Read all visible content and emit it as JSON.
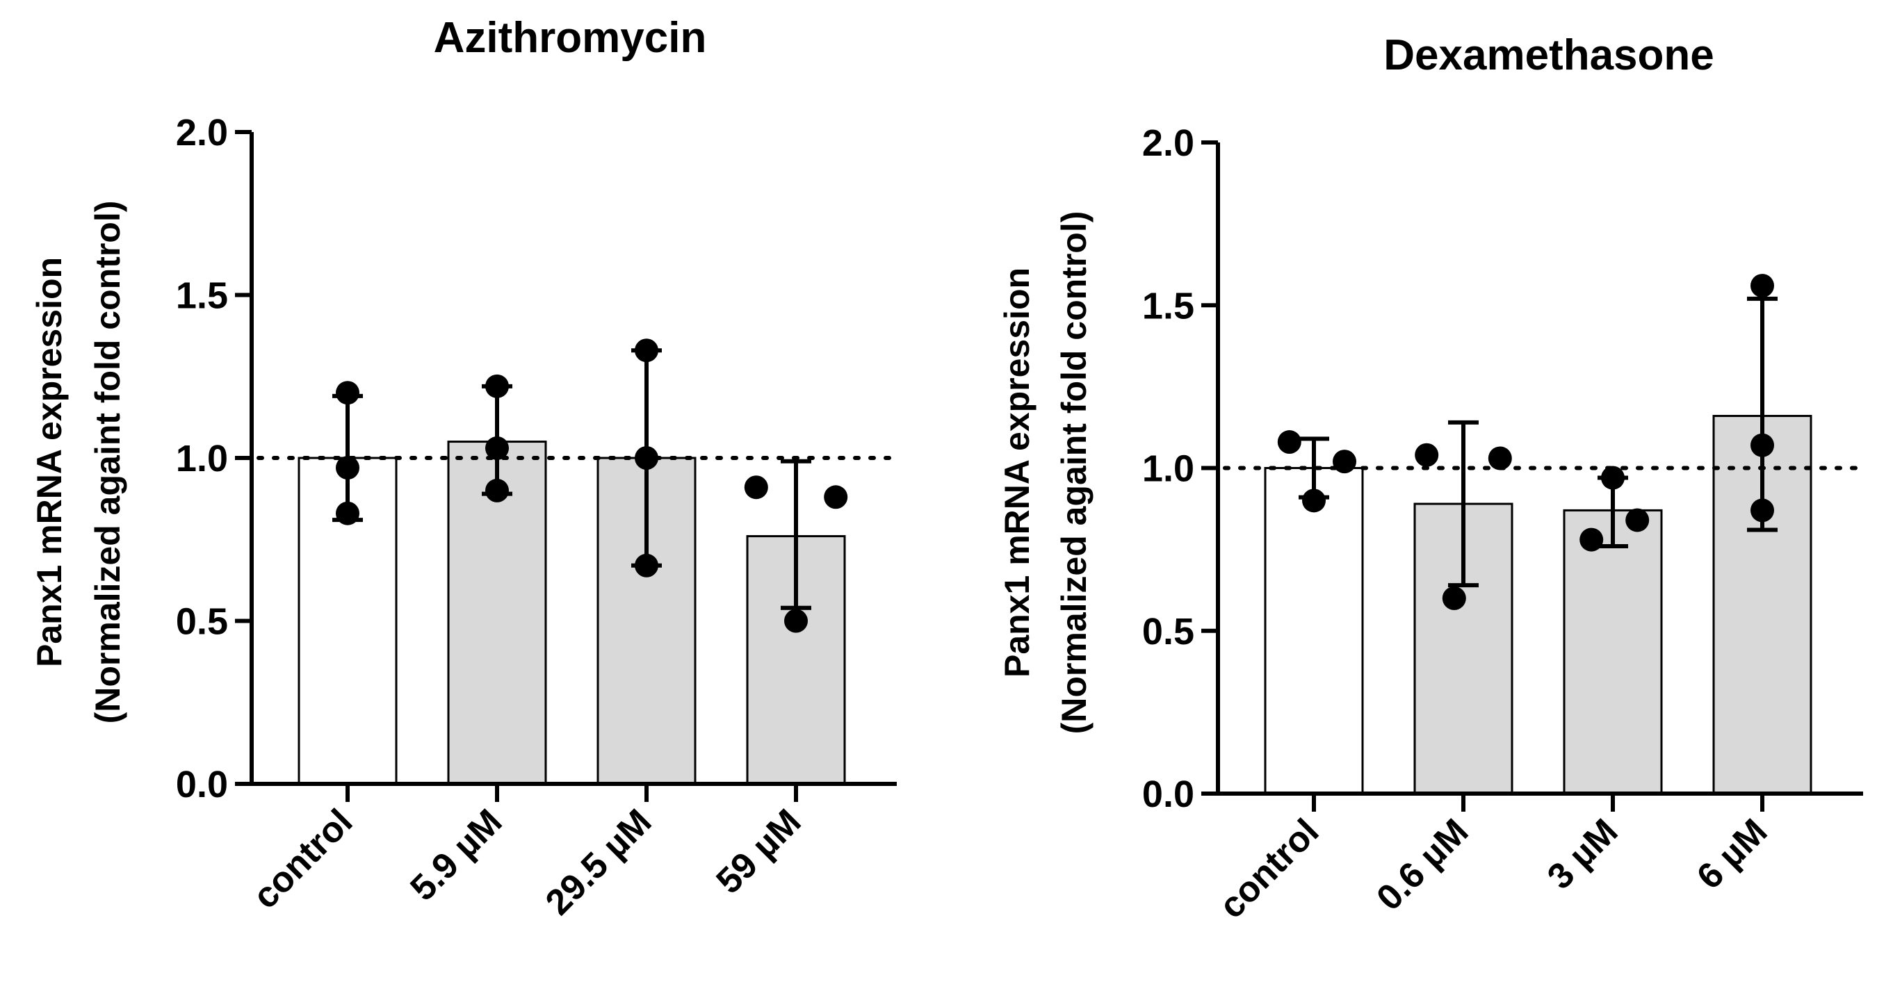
{
  "chart_data": [
    {
      "type": "bar",
      "title": "Azithromycin",
      "ylabel_line1": "Panx1 mRNA expression",
      "ylabel_line2": "(Normalized againt fold control)",
      "xlabel": "",
      "ylim": [
        0,
        2.0
      ],
      "yticks": [
        0.0,
        0.5,
        1.0,
        1.5,
        2.0
      ],
      "ytick_labels": [
        "0.0",
        "0.5",
        "1.0",
        "1.5",
        "2.0"
      ],
      "reference_line": 1.0,
      "categories": [
        "control",
        "5.9 µM",
        "29.5 µM",
        "59 µM"
      ],
      "values": [
        1.0,
        1.05,
        1.0,
        0.76
      ],
      "error_low": [
        0.81,
        0.89,
        0.67,
        0.54
      ],
      "error_high": [
        1.19,
        1.22,
        1.33,
        0.99
      ],
      "points": [
        [
          1.2,
          0.97,
          0.83
        ],
        [
          1.22,
          1.03,
          0.9
        ],
        [
          1.33,
          1.0,
          0.67
        ],
        [
          0.91,
          0.88,
          0.5
        ]
      ],
      "bar_colors": [
        "#ffffff",
        "#d9d9d9",
        "#d9d9d9",
        "#d9d9d9"
      ]
    },
    {
      "type": "bar",
      "title": "Dexamethasone",
      "ylabel_line1": "Panx1 mRNA expression",
      "ylabel_line2": "(Normalized againt fold control)",
      "xlabel": "",
      "ylim": [
        0,
        2.0
      ],
      "yticks": [
        0.0,
        0.5,
        1.0,
        1.5,
        2.0
      ],
      "ytick_labels": [
        "0.0",
        "0.5",
        "1.0",
        "1.5",
        "2.0"
      ],
      "reference_line": 1.0,
      "categories": [
        "control",
        "0.6 µM",
        "3 µM",
        "6 µM"
      ],
      "values": [
        1.0,
        0.89,
        0.87,
        1.16
      ],
      "error_low": [
        0.91,
        0.64,
        0.76,
        0.81
      ],
      "error_high": [
        1.09,
        1.14,
        0.97,
        1.52
      ],
      "points": [
        [
          1.08,
          1.02,
          0.9
        ],
        [
          1.04,
          1.03,
          0.6
        ],
        [
          0.97,
          0.84,
          0.78
        ],
        [
          1.56,
          1.07,
          0.87
        ]
      ],
      "bar_colors": [
        "#ffffff",
        "#d9d9d9",
        "#d9d9d9",
        "#d9d9d9"
      ]
    }
  ]
}
